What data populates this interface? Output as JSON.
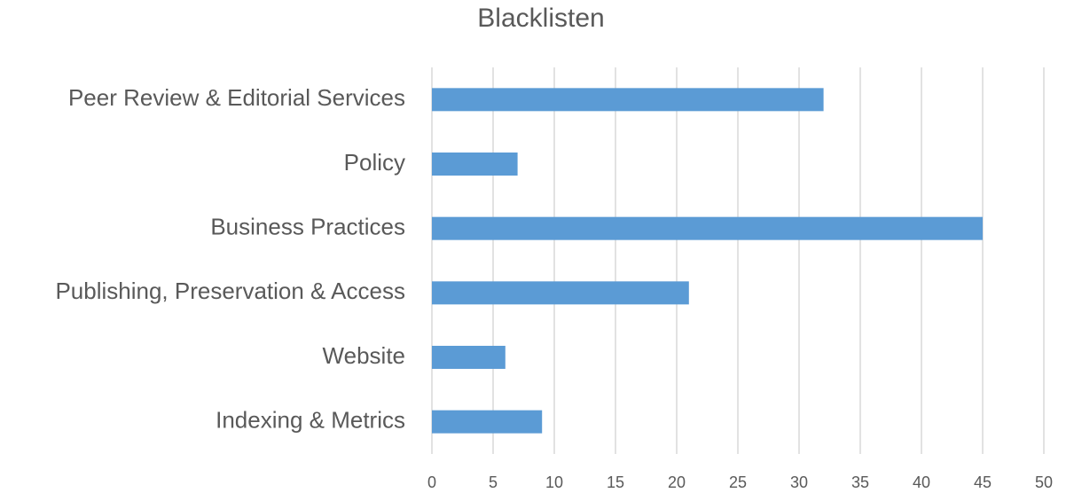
{
  "chart_data": {
    "type": "hbar",
    "title": "Blacklisten",
    "categories": [
      "Peer Review & Editorial Services",
      "Policy",
      "Business Practices",
      "Publishing, Preservation & Access",
      "Website",
      "Indexing & Metrics"
    ],
    "values": [
      32,
      7,
      45,
      21,
      6,
      9
    ],
    "color": "#5b9bd5",
    "xlim": [
      0,
      50
    ],
    "xticks": [
      0,
      5,
      10,
      15,
      20,
      25,
      30,
      35,
      40,
      45,
      50
    ],
    "grid": true
  }
}
